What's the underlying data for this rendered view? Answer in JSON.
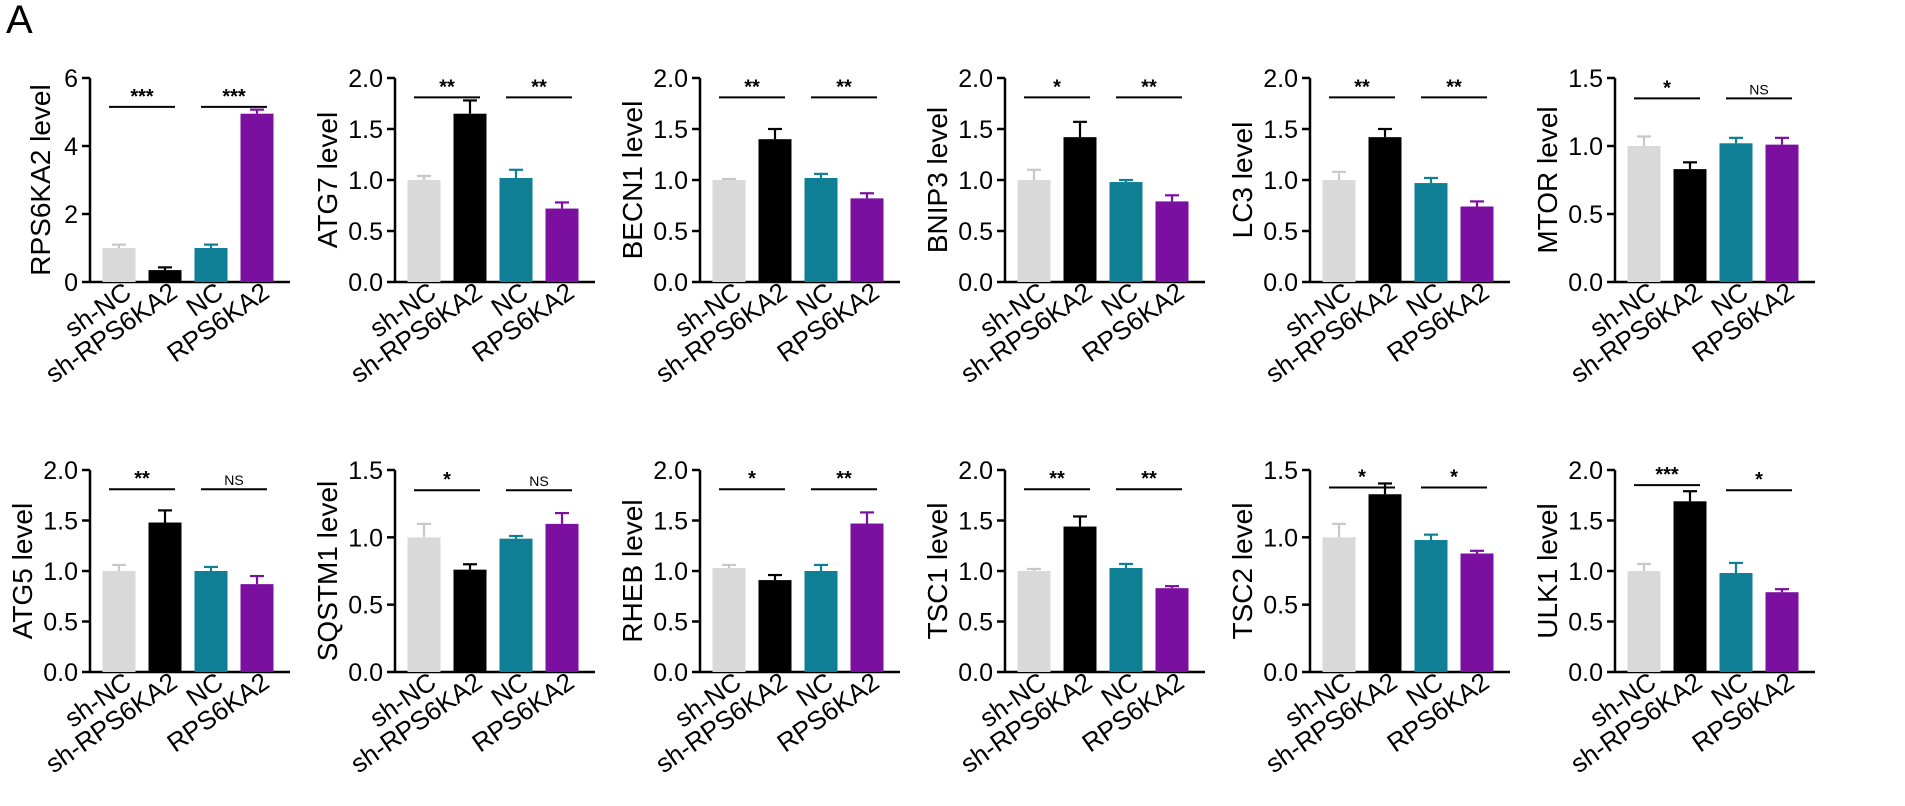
{
  "figure": {
    "panel_label": "A"
  },
  "chart_data": [
    {
      "type": "bar",
      "title": "",
      "xlabel": "",
      "ylabel": "RPS6KA2 level",
      "categories": [
        "sh-NC",
        "sh-RPS6KA2",
        "NC",
        "RPS6KA2"
      ],
      "colors": [
        "#d9d9d9",
        "#000000",
        "#0e7f95",
        "#7a0fa0"
      ],
      "values": [
        1.0,
        0.35,
        1.0,
        4.95
      ],
      "errors": [
        0.1,
        0.08,
        0.1,
        0.12
      ],
      "ylim": [
        0,
        6
      ],
      "yticks": [
        0,
        2,
        4,
        6
      ],
      "ytick_labels": [
        "0",
        "2",
        "4",
        "6"
      ],
      "significance": [
        {
          "pair": [
            0,
            1
          ],
          "label": "***",
          "y": 5.15
        },
        {
          "pair": [
            2,
            3
          ],
          "label": "***",
          "y": 5.15
        }
      ]
    },
    {
      "type": "bar",
      "title": "",
      "xlabel": "",
      "ylabel": "ATG7 level",
      "categories": [
        "sh-NC",
        "sh-RPS6KA2",
        "NC",
        "RPS6KA2"
      ],
      "colors": [
        "#d9d9d9",
        "#000000",
        "#0e7f95",
        "#7a0fa0"
      ],
      "values": [
        1.0,
        1.65,
        1.02,
        0.72
      ],
      "errors": [
        0.04,
        0.13,
        0.08,
        0.06
      ],
      "ylim": [
        0,
        2
      ],
      "yticks": [
        0,
        0.5,
        1,
        1.5,
        2
      ],
      "ytick_labels": [
        "0.0",
        "0.5",
        "1.0",
        "1.5",
        "2.0"
      ],
      "significance": [
        {
          "pair": [
            0,
            1
          ],
          "label": "**",
          "y": 1.81
        },
        {
          "pair": [
            2,
            3
          ],
          "label": "**",
          "y": 1.81
        }
      ]
    },
    {
      "type": "bar",
      "title": "",
      "xlabel": "",
      "ylabel": "BECN1 level",
      "categories": [
        "sh-NC",
        "sh-RPS6KA2",
        "NC",
        "RPS6KA2"
      ],
      "colors": [
        "#d9d9d9",
        "#000000",
        "#0e7f95",
        "#7a0fa0"
      ],
      "values": [
        1.0,
        1.4,
        1.02,
        0.82
      ],
      "errors": [
        0.01,
        0.1,
        0.04,
        0.05
      ],
      "ylim": [
        0,
        2
      ],
      "yticks": [
        0,
        0.5,
        1,
        1.5,
        2
      ],
      "ytick_labels": [
        "0.0",
        "0.5",
        "1.0",
        "1.5",
        "2.0"
      ],
      "significance": [
        {
          "pair": [
            0,
            1
          ],
          "label": "**",
          "y": 1.81
        },
        {
          "pair": [
            2,
            3
          ],
          "label": "**",
          "y": 1.81
        }
      ]
    },
    {
      "type": "bar",
      "title": "",
      "xlabel": "",
      "ylabel": "BNIP3 level",
      "categories": [
        "sh-NC",
        "sh-RPS6KA2",
        "NC",
        "RPS6KA2"
      ],
      "colors": [
        "#d9d9d9",
        "#000000",
        "#0e7f95",
        "#7a0fa0"
      ],
      "values": [
        1.0,
        1.42,
        0.98,
        0.79
      ],
      "errors": [
        0.1,
        0.15,
        0.02,
        0.06
      ],
      "ylim": [
        0,
        2
      ],
      "yticks": [
        0,
        0.5,
        1,
        1.5,
        2
      ],
      "ytick_labels": [
        "0.0",
        "0.5",
        "1.0",
        "1.5",
        "2.0"
      ],
      "significance": [
        {
          "pair": [
            0,
            1
          ],
          "label": "*",
          "y": 1.81
        },
        {
          "pair": [
            2,
            3
          ],
          "label": "**",
          "y": 1.81
        }
      ]
    },
    {
      "type": "bar",
      "title": "",
      "xlabel": "",
      "ylabel": "LC3 level",
      "categories": [
        "sh-NC",
        "sh-RPS6KA2",
        "NC",
        "RPS6KA2"
      ],
      "colors": [
        "#d9d9d9",
        "#000000",
        "#0e7f95",
        "#7a0fa0"
      ],
      "values": [
        1.0,
        1.42,
        0.97,
        0.74
      ],
      "errors": [
        0.08,
        0.08,
        0.05,
        0.05
      ],
      "ylim": [
        0,
        2
      ],
      "yticks": [
        0,
        0.5,
        1,
        1.5,
        2
      ],
      "ytick_labels": [
        "0.0",
        "0.5",
        "1.0",
        "1.5",
        "2.0"
      ],
      "significance": [
        {
          "pair": [
            0,
            1
          ],
          "label": "**",
          "y": 1.81
        },
        {
          "pair": [
            2,
            3
          ],
          "label": "**",
          "y": 1.81
        }
      ]
    },
    {
      "type": "bar",
      "title": "",
      "xlabel": "",
      "ylabel": "MTOR level",
      "categories": [
        "sh-NC",
        "sh-RPS6KA2",
        "NC",
        "RPS6KA2"
      ],
      "colors": [
        "#d9d9d9",
        "#000000",
        "#0e7f95",
        "#7a0fa0"
      ],
      "values": [
        1.0,
        0.83,
        1.02,
        1.01
      ],
      "errors": [
        0.07,
        0.05,
        0.04,
        0.05
      ],
      "ylim": [
        0,
        1.5
      ],
      "yticks": [
        0,
        0.5,
        1,
        1.5
      ],
      "ytick_labels": [
        "0.0",
        "0.5",
        "1.0",
        "1.5"
      ],
      "significance": [
        {
          "pair": [
            0,
            1
          ],
          "label": "*",
          "y": 1.35
        },
        {
          "pair": [
            2,
            3
          ],
          "label": "NS",
          "y": 1.35
        }
      ]
    },
    {
      "type": "bar",
      "title": "",
      "xlabel": "",
      "ylabel": "ATG5 level",
      "categories": [
        "sh-NC",
        "sh-RPS6KA2",
        "NC",
        "RPS6KA2"
      ],
      "colors": [
        "#d9d9d9",
        "#000000",
        "#0e7f95",
        "#7a0fa0"
      ],
      "values": [
        1.0,
        1.48,
        1.0,
        0.87
      ],
      "errors": [
        0.06,
        0.12,
        0.04,
        0.08
      ],
      "ylim": [
        0,
        2
      ],
      "yticks": [
        0,
        0.5,
        1,
        1.5,
        2
      ],
      "ytick_labels": [
        "0.0",
        "0.5",
        "1.0",
        "1.5",
        "2.0"
      ],
      "significance": [
        {
          "pair": [
            0,
            1
          ],
          "label": "**",
          "y": 1.81
        },
        {
          "pair": [
            2,
            3
          ],
          "label": "NS",
          "y": 1.81
        }
      ]
    },
    {
      "type": "bar",
      "title": "",
      "xlabel": "",
      "ylabel": "SQSTM1 level",
      "categories": [
        "sh-NC",
        "sh-RPS6KA2",
        "NC",
        "RPS6KA2"
      ],
      "colors": [
        "#d9d9d9",
        "#000000",
        "#0e7f95",
        "#7a0fa0"
      ],
      "values": [
        1.0,
        0.76,
        0.99,
        1.1
      ],
      "errors": [
        0.1,
        0.04,
        0.02,
        0.08
      ],
      "ylim": [
        0,
        1.5
      ],
      "yticks": [
        0,
        0.5,
        1,
        1.5
      ],
      "ytick_labels": [
        "0.0",
        "0.5",
        "1.0",
        "1.5"
      ],
      "significance": [
        {
          "pair": [
            0,
            1
          ],
          "label": "*",
          "y": 1.35
        },
        {
          "pair": [
            2,
            3
          ],
          "label": "NS",
          "y": 1.35
        }
      ]
    },
    {
      "type": "bar",
      "title": "",
      "xlabel": "",
      "ylabel": "RHEB level",
      "categories": [
        "sh-NC",
        "sh-RPS6KA2",
        "NC",
        "RPS6KA2"
      ],
      "colors": [
        "#d9d9d9",
        "#000000",
        "#0e7f95",
        "#7a0fa0"
      ],
      "values": [
        1.03,
        0.91,
        1.0,
        1.47
      ],
      "errors": [
        0.03,
        0.05,
        0.06,
        0.11
      ],
      "ylim": [
        0,
        2
      ],
      "yticks": [
        0,
        0.5,
        1,
        1.5,
        2
      ],
      "ytick_labels": [
        "0.0",
        "0.5",
        "1.0",
        "1.5",
        "2.0"
      ],
      "significance": [
        {
          "pair": [
            0,
            1
          ],
          "label": "*",
          "y": 1.81
        },
        {
          "pair": [
            2,
            3
          ],
          "label": "**",
          "y": 1.81
        }
      ]
    },
    {
      "type": "bar",
      "title": "",
      "xlabel": "",
      "ylabel": "TSC1 level",
      "categories": [
        "sh-NC",
        "sh-RPS6KA2",
        "NC",
        "RPS6KA2"
      ],
      "colors": [
        "#d9d9d9",
        "#000000",
        "#0e7f95",
        "#7a0fa0"
      ],
      "values": [
        1.0,
        1.44,
        1.03,
        0.83
      ],
      "errors": [
        0.02,
        0.1,
        0.04,
        0.02
      ],
      "ylim": [
        0,
        2
      ],
      "yticks": [
        0,
        0.5,
        1,
        1.5,
        2
      ],
      "ytick_labels": [
        "0.0",
        "0.5",
        "1.0",
        "1.5",
        "2.0"
      ],
      "significance": [
        {
          "pair": [
            0,
            1
          ],
          "label": "**",
          "y": 1.81
        },
        {
          "pair": [
            2,
            3
          ],
          "label": "**",
          "y": 1.81
        }
      ]
    },
    {
      "type": "bar",
      "title": "",
      "xlabel": "",
      "ylabel": "TSC2 level",
      "categories": [
        "sh-NC",
        "sh-RPS6KA2",
        "NC",
        "RPS6KA2"
      ],
      "colors": [
        "#d9d9d9",
        "#000000",
        "#0e7f95",
        "#7a0fa0"
      ],
      "values": [
        1.0,
        1.32,
        0.98,
        0.88
      ],
      "errors": [
        0.1,
        0.08,
        0.04,
        0.02
      ],
      "ylim": [
        0,
        1.5
      ],
      "yticks": [
        0,
        0.5,
        1,
        1.5
      ],
      "ytick_labels": [
        "0.0",
        "0.5",
        "1.0",
        "1.5"
      ],
      "significance": [
        {
          "pair": [
            0,
            1
          ],
          "label": "*",
          "y": 1.37
        },
        {
          "pair": [
            2,
            3
          ],
          "label": "*",
          "y": 1.37
        }
      ]
    },
    {
      "type": "bar",
      "title": "",
      "xlabel": "",
      "ylabel": "ULK1 level",
      "categories": [
        "sh-NC",
        "sh-RPS6KA2",
        "NC",
        "RPS6KA2"
      ],
      "colors": [
        "#d9d9d9",
        "#000000",
        "#0e7f95",
        "#7a0fa0"
      ],
      "values": [
        1.0,
        1.69,
        0.98,
        0.79
      ],
      "errors": [
        0.07,
        0.1,
        0.1,
        0.03
      ],
      "ylim": [
        0,
        2
      ],
      "yticks": [
        0,
        0.5,
        1,
        1.5,
        2
      ],
      "ytick_labels": [
        "0.0",
        "0.5",
        "1.0",
        "1.5",
        "2.0"
      ],
      "significance": [
        {
          "pair": [
            0,
            1
          ],
          "label": "***",
          "y": 1.85
        },
        {
          "pair": [
            2,
            3
          ],
          "label": "*",
          "y": 1.8
        }
      ]
    }
  ]
}
